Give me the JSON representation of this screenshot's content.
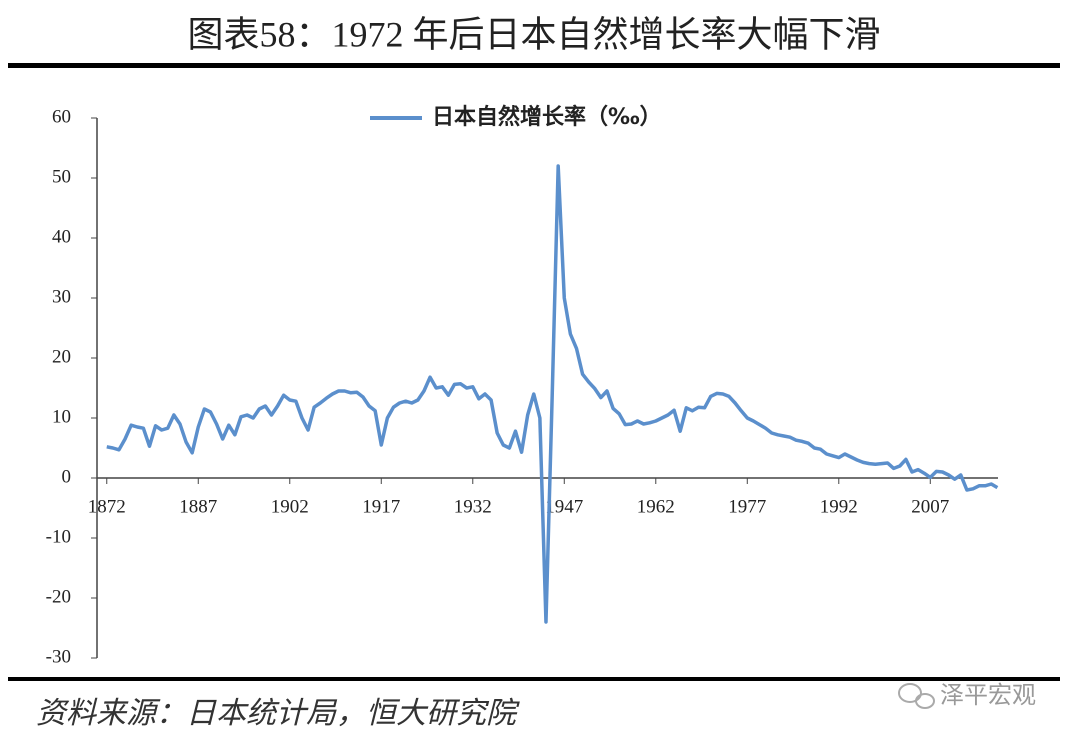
{
  "chart_data": {
    "type": "line",
    "title": "图表58：1972 年后日本自然增长率大幅下滑",
    "x": [
      1872,
      1873,
      1874,
      1875,
      1876,
      1877,
      1878,
      1879,
      1880,
      1881,
      1882,
      1883,
      1884,
      1885,
      1886,
      1887,
      1888,
      1889,
      1890,
      1891,
      1892,
      1893,
      1894,
      1895,
      1896,
      1897,
      1898,
      1899,
      1900,
      1901,
      1902,
      1903,
      1904,
      1905,
      1906,
      1907,
      1908,
      1909,
      1910,
      1911,
      1912,
      1913,
      1914,
      1915,
      1916,
      1917,
      1918,
      1919,
      1920,
      1921,
      1922,
      1923,
      1924,
      1925,
      1926,
      1927,
      1928,
      1929,
      1930,
      1931,
      1932,
      1933,
      1934,
      1935,
      1936,
      1937,
      1938,
      1939,
      1940,
      1941,
      1942,
      1943,
      1944,
      1945,
      1946,
      1947,
      1948,
      1949,
      1950,
      1951,
      1952,
      1953,
      1954,
      1955,
      1956,
      1957,
      1958,
      1959,
      1960,
      1961,
      1962,
      1963,
      1964,
      1965,
      1966,
      1967,
      1968,
      1969,
      1970,
      1971,
      1972,
      1973,
      1974,
      1975,
      1976,
      1977,
      1978,
      1979,
      1980,
      1981,
      1982,
      1983,
      1984,
      1985,
      1986,
      1987,
      1988,
      1989,
      1990,
      1991,
      1992,
      1993,
      1994,
      1995,
      1996,
      1997,
      1998,
      1999,
      2000,
      2001,
      2002,
      2003,
      2004,
      2005,
      2006,
      2007,
      2008,
      2009,
      2010,
      2011,
      2012,
      2013,
      2014,
      2015,
      2016,
      2017,
      2018
    ],
    "series": [
      {
        "name": "日本自然增长率（‰）",
        "color": "#5b8fcc",
        "values": [
          5.2,
          5.0,
          4.7,
          6.5,
          8.8,
          8.5,
          8.3,
          5.3,
          8.7,
          8.0,
          8.3,
          10.5,
          9.0,
          6.0,
          4.2,
          8.5,
          11.5,
          11.0,
          9.0,
          6.5,
          8.8,
          7.2,
          10.2,
          10.5,
          10.0,
          11.5,
          12.0,
          10.5,
          12.0,
          13.8,
          13.0,
          12.8,
          10.0,
          8.0,
          11.8,
          12.5,
          13.3,
          14.0,
          14.5,
          14.5,
          14.2,
          14.3,
          13.5,
          12.0,
          11.2,
          5.5,
          10.0,
          11.8,
          12.5,
          12.8,
          12.5,
          13.0,
          14.5,
          16.8,
          15.0,
          15.2,
          13.8,
          15.6,
          15.7,
          15.0,
          15.2,
          13.2,
          14.0,
          13.0,
          7.5,
          5.5,
          5.0,
          7.8,
          4.3,
          10.5,
          14.0,
          10.0,
          -24,
          13,
          52,
          30,
          24,
          21.6,
          17.3,
          16,
          14.9,
          13.4,
          14.5,
          11.6,
          10.7,
          8.9,
          9.0,
          9.5,
          9.0,
          9.2,
          9.5,
          10.0,
          10.5,
          11.3,
          7.8,
          11.7,
          11.2,
          11.8,
          11.7,
          13.6,
          14.1,
          14.0,
          13.6,
          12.5,
          11.2,
          10.0,
          9.5,
          8.9,
          8.3,
          7.5,
          7.2,
          7.0,
          6.8,
          6.3,
          6.1,
          5.8,
          5.0,
          4.8,
          4.0,
          3.7,
          3.4,
          4.0,
          3.5,
          3.0,
          2.6,
          2.4,
          2.3,
          2.4,
          2.5,
          1.6,
          2.0,
          3.1,
          1.0,
          1.4,
          0.8,
          0.1,
          1.1,
          1.0,
          0.5,
          -0.2,
          0.5,
          -2.0,
          -1.8,
          -1.3,
          -1.3,
          -1.0,
          -1.6
        ]
      }
    ],
    "xlim": [
      1870.4,
      2018.1
    ],
    "xticks": [
      1872,
      1887,
      1902,
      1917,
      1932,
      1947,
      1962,
      1977,
      1992,
      2007
    ],
    "ylim": [
      -30,
      60
    ],
    "yticks": [
      -30,
      -20,
      -10,
      0,
      10,
      20,
      30,
      40,
      50,
      60
    ],
    "legend": "top"
  },
  "footer": {
    "source": "资料来源：日本统计局，恒大研究院",
    "watermark": "泽平宏观"
  }
}
